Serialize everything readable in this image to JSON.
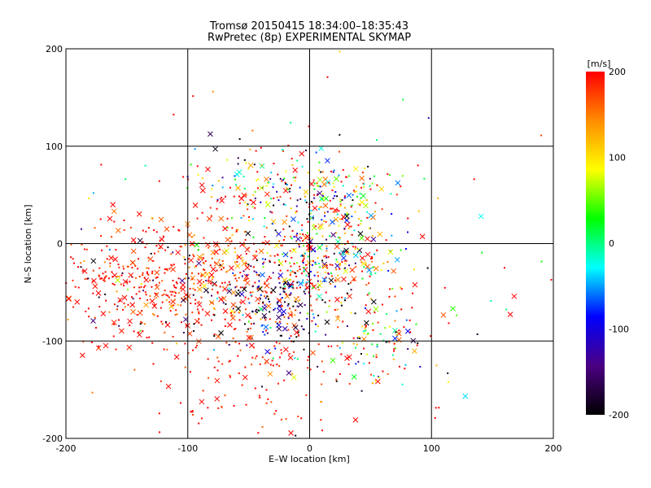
{
  "chart_data": {
    "type": "scatter",
    "title": "Tromsø 20150415 18:34:00–18:35:43",
    "subtitle": "RwPretec (8p) EXPERIMENTAL SKYMAP",
    "xlabel": "E–W location [km]",
    "ylabel": "N–S location [km]",
    "xlim": [
      -200,
      200
    ],
    "ylim": [
      -200,
      200
    ],
    "x_ticks": [
      -200,
      -100,
      0,
      100,
      200
    ],
    "y_ticks": [
      -200,
      -100,
      0,
      100,
      200
    ],
    "grid": true,
    "colorbar": {
      "label": "[m/s]",
      "range": [
        -200,
        200
      ],
      "ticks": [
        -200,
        -100,
        0,
        100,
        200
      ],
      "colormap": [
        "#000000",
        "#4b0082",
        "#0000ff",
        "#00ffff",
        "#00ff00",
        "#ffff00",
        "#ff8c00",
        "#ff0000"
      ]
    },
    "marker_types": [
      "dot",
      "cross"
    ],
    "clusters": [
      {
        "x": -65,
        "y": -35,
        "sx": 55,
        "sy": 35,
        "n": 520,
        "v": 185,
        "dv": 40
      },
      {
        "x": -150,
        "y": -40,
        "sx": 35,
        "sy": 30,
        "n": 230,
        "v": 195,
        "dv": 20
      },
      {
        "x": -25,
        "y": -60,
        "sx": 25,
        "sy": 25,
        "n": 170,
        "v": -150,
        "dv": 80
      },
      {
        "x": 15,
        "y": -10,
        "sx": 25,
        "sy": 20,
        "n": 200,
        "v": 60,
        "dv": 140
      },
      {
        "x": 20,
        "y": 45,
        "sx": 25,
        "sy": 20,
        "n": 170,
        "v": 80,
        "dv": 150
      },
      {
        "x": -40,
        "y": 60,
        "sx": 25,
        "sy": 20,
        "n": 110,
        "v": 120,
        "dv": 140
      },
      {
        "x": 60,
        "y": -100,
        "sx": 20,
        "sy": 20,
        "n": 100,
        "v": 120,
        "dv": 140
      },
      {
        "x": -40,
        "y": -140,
        "sx": 40,
        "sy": 30,
        "n": 130,
        "v": 195,
        "dv": 20
      },
      {
        "x": 0,
        "y": 0,
        "sx": 110,
        "sy": 100,
        "n": 120,
        "v": 100,
        "dv": 200
      }
    ]
  }
}
